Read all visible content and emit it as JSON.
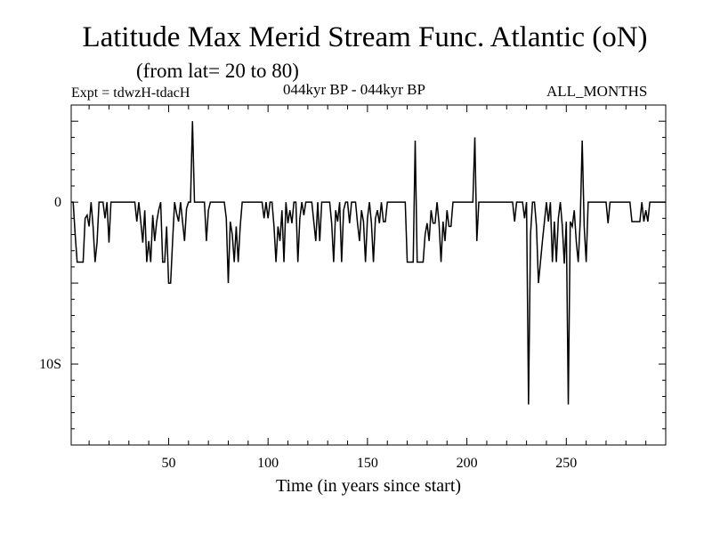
{
  "header": {
    "title": "Latitude Max Merid Stream Func. Atlantic (oN)",
    "subtitle": "(from lat= 20 to 80)",
    "experiment": "Expt = tdwzH-tdacH",
    "period": "044kyr BP - 044kyr BP",
    "months": "ALL_MONTHS"
  },
  "chart_data": {
    "type": "line",
    "title": "Latitude Max Merid Stream Func. Atlantic (oN)",
    "subtitle": "(from lat= 20 to 80)",
    "xlabel": "Time (in years since start)",
    "ylabel": "",
    "xlim": [
      1,
      300
    ],
    "ylim": [
      -15,
      6
    ],
    "x_ticks": [
      50,
      100,
      150,
      200,
      250
    ],
    "x_tick_labels": [
      "50",
      "100",
      "150",
      "200",
      "250"
    ],
    "y_ticks": [
      0,
      -10
    ],
    "y_tick_labels": [
      "0",
      "10S"
    ],
    "grid": false,
    "legend": "none",
    "line_color": "#000000",
    "series": [
      {
        "points": [
          [
            1,
            0
          ],
          [
            2,
            0
          ],
          [
            3,
            -2
          ],
          [
            4,
            -3.7
          ],
          [
            5,
            -3.7
          ],
          [
            6,
            -3.7
          ],
          [
            7,
            -3.7
          ],
          [
            8,
            -1
          ],
          [
            9,
            -0.8
          ],
          [
            10,
            -1.5
          ],
          [
            11,
            0
          ],
          [
            12,
            -1.5
          ],
          [
            13,
            -3.7
          ],
          [
            14,
            -2.5
          ],
          [
            15,
            0
          ],
          [
            16,
            0
          ],
          [
            17,
            0
          ],
          [
            18,
            -1
          ],
          [
            19,
            0
          ],
          [
            20,
            -2.5
          ],
          [
            21,
            0
          ],
          [
            22,
            0
          ],
          [
            23,
            0
          ],
          [
            24,
            0
          ],
          [
            25,
            0
          ],
          [
            26,
            0
          ],
          [
            27,
            0
          ],
          [
            28,
            0
          ],
          [
            29,
            0
          ],
          [
            30,
            0
          ],
          [
            31,
            0
          ],
          [
            32,
            0
          ],
          [
            33,
            0
          ],
          [
            34,
            -1.2
          ],
          [
            35,
            0
          ],
          [
            36,
            -1.2
          ],
          [
            37,
            -2.5
          ],
          [
            38,
            -0.5
          ],
          [
            39,
            -3.7
          ],
          [
            40,
            -2.4
          ],
          [
            41,
            -3.7
          ],
          [
            42,
            -0.8
          ],
          [
            43,
            -2.4
          ],
          [
            44,
            -1.2
          ],
          [
            45,
            -0.5
          ],
          [
            46,
            0
          ],
          [
            47,
            -3.7
          ],
          [
            48,
            -3.7
          ],
          [
            49,
            -1.5
          ],
          [
            50,
            -5
          ],
          [
            51,
            -5
          ],
          [
            52,
            -2.4
          ],
          [
            53,
            0
          ],
          [
            54,
            -0.7
          ],
          [
            55,
            -1.2
          ],
          [
            56,
            0
          ],
          [
            57,
            -1.2
          ],
          [
            58,
            -2.4
          ],
          [
            59,
            -0.4
          ],
          [
            60,
            0
          ],
          [
            61,
            0
          ],
          [
            62,
            5
          ],
          [
            63,
            0
          ],
          [
            64,
            0
          ],
          [
            65,
            0
          ],
          [
            66,
            0
          ],
          [
            67,
            0
          ],
          [
            68,
            0
          ],
          [
            69,
            -2.4
          ],
          [
            70,
            -0.5
          ],
          [
            71,
            0
          ],
          [
            72,
            0
          ],
          [
            73,
            0
          ],
          [
            74,
            0
          ],
          [
            75,
            0
          ],
          [
            76,
            0
          ],
          [
            77,
            0
          ],
          [
            78,
            0
          ],
          [
            79,
            -1
          ],
          [
            80,
            -5
          ],
          [
            81,
            -1.2
          ],
          [
            82,
            -2
          ],
          [
            83,
            -3.7
          ],
          [
            84,
            -1.5
          ],
          [
            85,
            -3.7
          ],
          [
            86,
            -1.5
          ],
          [
            87,
            0
          ],
          [
            88,
            0
          ],
          [
            89,
            0
          ],
          [
            90,
            0
          ],
          [
            91,
            0
          ],
          [
            92,
            0
          ],
          [
            93,
            0
          ],
          [
            94,
            0
          ],
          [
            95,
            0
          ],
          [
            96,
            0
          ],
          [
            97,
            0
          ],
          [
            98,
            -1
          ],
          [
            99,
            0
          ],
          [
            100,
            -1
          ],
          [
            101,
            0
          ],
          [
            102,
            0
          ],
          [
            103,
            -1.5
          ],
          [
            104,
            -3.7
          ],
          [
            105,
            -1.5
          ],
          [
            106,
            -2.4
          ],
          [
            107,
            -0.5
          ],
          [
            108,
            -3.7
          ],
          [
            109,
            0
          ],
          [
            110,
            -1.3
          ],
          [
            111,
            -0.5
          ],
          [
            112,
            -1.3
          ],
          [
            113,
            0
          ],
          [
            114,
            0
          ],
          [
            115,
            -3.7
          ],
          [
            116,
            -1
          ],
          [
            117,
            0
          ],
          [
            118,
            -0.8
          ],
          [
            119,
            0
          ],
          [
            120,
            0
          ],
          [
            121,
            0
          ],
          [
            122,
            0
          ],
          [
            123,
            -1.2
          ],
          [
            124,
            -2.4
          ],
          [
            125,
            0
          ],
          [
            126,
            -2.4
          ],
          [
            127,
            0
          ],
          [
            128,
            0
          ],
          [
            129,
            0
          ],
          [
            130,
            0
          ],
          [
            131,
            0
          ],
          [
            132,
            -1.3
          ],
          [
            133,
            -3.7
          ],
          [
            134,
            -0.5
          ],
          [
            135,
            -1.2
          ],
          [
            136,
            0
          ],
          [
            137,
            -3.7
          ],
          [
            138,
            -0.5
          ],
          [
            139,
            0
          ],
          [
            140,
            0
          ],
          [
            141,
            -1.3
          ],
          [
            142,
            0
          ],
          [
            143,
            0
          ],
          [
            144,
            0
          ],
          [
            145,
            -1.3
          ],
          [
            146,
            -2.4
          ],
          [
            147,
            -0.5
          ],
          [
            148,
            -1.2
          ],
          [
            149,
            -3.7
          ],
          [
            150,
            -1
          ],
          [
            151,
            0
          ],
          [
            152,
            -1.3
          ],
          [
            153,
            -3.7
          ],
          [
            154,
            -1
          ],
          [
            155,
            -0.5
          ],
          [
            156,
            -1.3
          ],
          [
            157,
            0
          ],
          [
            158,
            -1.2
          ],
          [
            159,
            -1.2
          ],
          [
            160,
            0
          ],
          [
            161,
            0
          ],
          [
            162,
            0
          ],
          [
            163,
            0
          ],
          [
            164,
            0
          ],
          [
            165,
            0
          ],
          [
            166,
            0
          ],
          [
            167,
            0
          ],
          [
            168,
            0
          ],
          [
            169,
            0
          ],
          [
            170,
            -3.7
          ],
          [
            171,
            -3.7
          ],
          [
            172,
            -3.7
          ],
          [
            173,
            -3.7
          ],
          [
            174,
            3.8
          ],
          [
            175,
            -3.7
          ],
          [
            176,
            -3.7
          ],
          [
            177,
            -3.7
          ],
          [
            178,
            -3.7
          ],
          [
            179,
            -2
          ],
          [
            180,
            -1.3
          ],
          [
            181,
            -2.4
          ],
          [
            182,
            -0.5
          ],
          [
            183,
            -1.3
          ],
          [
            184,
            -1.3
          ],
          [
            185,
            0
          ],
          [
            186,
            -1.3
          ],
          [
            187,
            -3.7
          ],
          [
            188,
            -1.2
          ],
          [
            189,
            -2.4
          ],
          [
            190,
            -0.5
          ],
          [
            191,
            -1.5
          ],
          [
            192,
            -1.5
          ],
          [
            193,
            0
          ],
          [
            194,
            0
          ],
          [
            195,
            0
          ],
          [
            196,
            0
          ],
          [
            197,
            0
          ],
          [
            198,
            0
          ],
          [
            199,
            0
          ],
          [
            200,
            0
          ],
          [
            201,
            0
          ],
          [
            202,
            0
          ],
          [
            203,
            0
          ],
          [
            204,
            4
          ],
          [
            205,
            -2.4
          ],
          [
            206,
            0
          ],
          [
            207,
            0
          ],
          [
            208,
            0
          ],
          [
            209,
            0
          ],
          [
            210,
            0
          ],
          [
            211,
            0
          ],
          [
            212,
            0
          ],
          [
            213,
            0
          ],
          [
            214,
            0
          ],
          [
            215,
            0
          ],
          [
            216,
            0
          ],
          [
            217,
            0
          ],
          [
            218,
            0
          ],
          [
            219,
            0
          ],
          [
            220,
            0
          ],
          [
            221,
            0
          ],
          [
            222,
            0
          ],
          [
            223,
            0
          ],
          [
            224,
            -1.2
          ],
          [
            225,
            0
          ],
          [
            226,
            0
          ],
          [
            227,
            0
          ],
          [
            228,
            0
          ],
          [
            229,
            -1
          ],
          [
            230,
            0
          ],
          [
            231,
            -12.5
          ],
          [
            232,
            -2
          ],
          [
            233,
            0
          ],
          [
            234,
            0
          ],
          [
            235,
            -1.5
          ],
          [
            236,
            -5
          ],
          [
            237,
            -3.7
          ],
          [
            238,
            -2.4
          ],
          [
            239,
            -1.2
          ],
          [
            240,
            0
          ],
          [
            241,
            -1.2
          ],
          [
            242,
            0
          ],
          [
            243,
            -3.7
          ],
          [
            244,
            -1.2
          ],
          [
            245,
            -3.7
          ],
          [
            246,
            -1
          ],
          [
            247,
            0
          ],
          [
            248,
            -1.5
          ],
          [
            249,
            -3.8
          ],
          [
            250,
            -1.2
          ],
          [
            251,
            -12.5
          ],
          [
            252,
            -1.2
          ],
          [
            253,
            -1.5
          ],
          [
            254,
            -0.5
          ],
          [
            255,
            -2.4
          ],
          [
            256,
            -3.7
          ],
          [
            257,
            -1.2
          ],
          [
            258,
            3.8
          ],
          [
            259,
            -1.5
          ],
          [
            260,
            -3.7
          ],
          [
            261,
            0
          ],
          [
            262,
            0
          ],
          [
            263,
            0
          ],
          [
            264,
            0
          ],
          [
            265,
            0
          ],
          [
            266,
            0
          ],
          [
            267,
            0
          ],
          [
            268,
            0
          ],
          [
            269,
            0
          ],
          [
            270,
            0
          ],
          [
            271,
            -1.3
          ],
          [
            272,
            0
          ],
          [
            273,
            0
          ],
          [
            274,
            0
          ],
          [
            275,
            0
          ],
          [
            276,
            0
          ],
          [
            277,
            0
          ],
          [
            278,
            0
          ],
          [
            279,
            0
          ],
          [
            280,
            0
          ],
          [
            281,
            0
          ],
          [
            282,
            0
          ],
          [
            283,
            -1.2
          ],
          [
            284,
            -1.2
          ],
          [
            285,
            -1.2
          ],
          [
            286,
            -1.2
          ],
          [
            287,
            -1.2
          ],
          [
            288,
            0
          ],
          [
            289,
            -1.2
          ],
          [
            290,
            -0.5
          ],
          [
            291,
            -1.2
          ],
          [
            292,
            0
          ],
          [
            293,
            0
          ],
          [
            294,
            0
          ],
          [
            295,
            0
          ],
          [
            296,
            0
          ],
          [
            297,
            0
          ],
          [
            298,
            0
          ],
          [
            299,
            0
          ],
          [
            300,
            0
          ]
        ]
      }
    ]
  }
}
